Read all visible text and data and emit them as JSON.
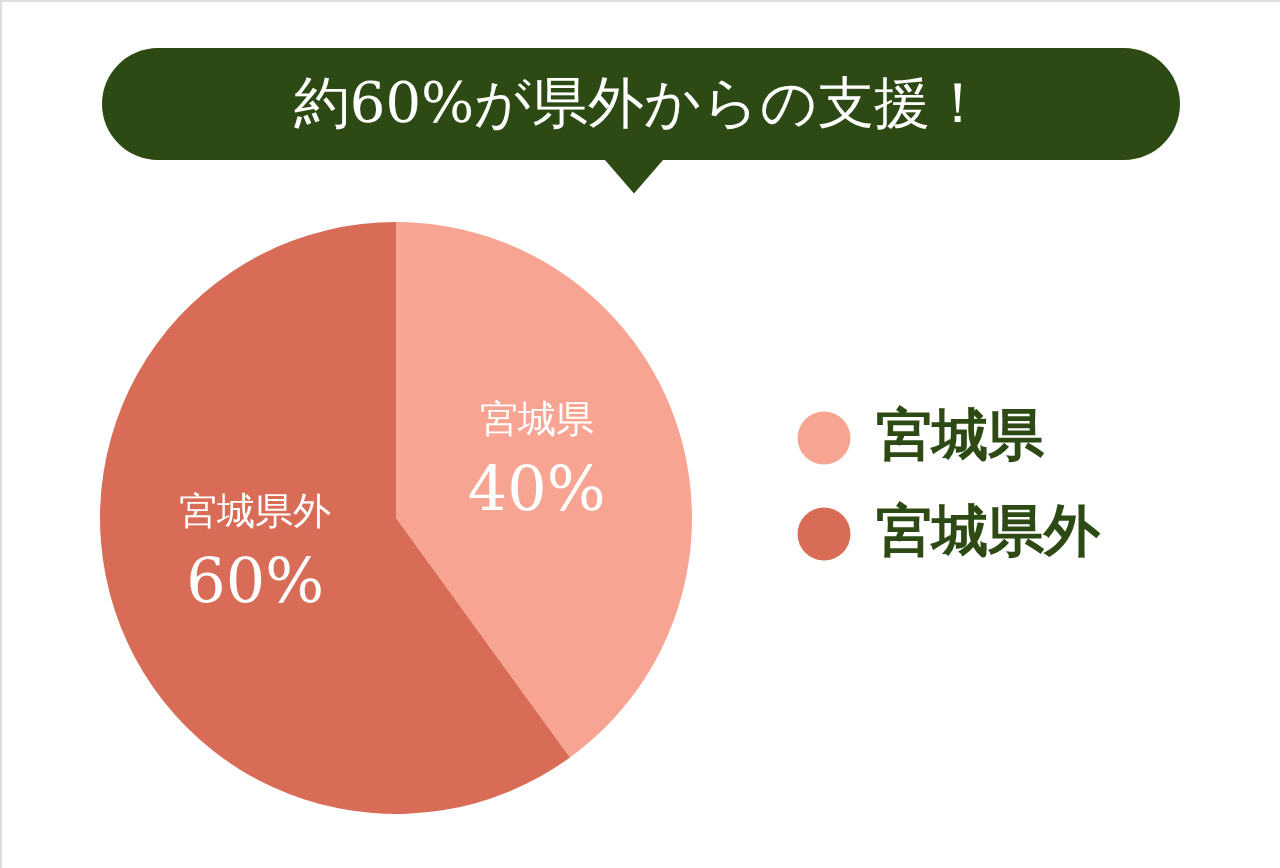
{
  "chart_data": {
    "type": "pie",
    "title": "約60%が県外からの支援！",
    "categories": [
      "宮城県",
      "宮城県外"
    ],
    "values": [
      40,
      60
    ],
    "colors": [
      "#f7a592",
      "#d96c56"
    ],
    "value_labels": [
      "40%",
      "60%"
    ],
    "legend": "right"
  }
}
